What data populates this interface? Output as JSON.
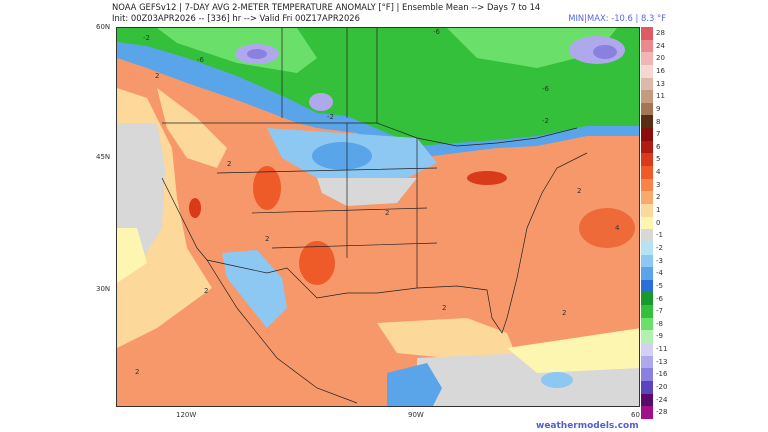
{
  "header": {
    "title": "NOAA GEFSv12 | 7-DAY AVG 2-METER TEMPERATURE ANOMALY [°F] | Ensemble Mean --> Days 7 to 14",
    "subtitle": "Init: 00Z03APR2026 -- [336] hr --> Valid Fri 00Z17APR2026",
    "minmax": "MIN|MAX: -10.6 | 8.3 °F"
  },
  "axes": {
    "lat_labels": [
      "60N",
      "45N",
      "30N"
    ],
    "lon_labels": [
      "120W",
      "90W",
      "60"
    ]
  },
  "contour_labels": [
    "-2",
    "-6",
    "-6",
    "-2",
    "-2",
    "-6",
    "2",
    "2",
    "2",
    "2",
    "2",
    "4",
    "2",
    "2",
    "2",
    "2"
  ],
  "colorbar": {
    "labels": [
      "28",
      "24",
      "20",
      "16",
      "13",
      "11",
      "9",
      "8",
      "7",
      "6",
      "5",
      "4",
      "3",
      "2",
      "1",
      "0",
      "-1",
      "-2",
      "-3",
      "-4",
      "-5",
      "-6",
      "-7",
      "-8",
      "-9",
      "-11",
      "-13",
      "-16",
      "-20",
      "-24",
      "-28"
    ],
    "colors": [
      "#e05a66",
      "#ea8a90",
      "#f2b5b5",
      "#f4d8d0",
      "#dcb9a8",
      "#c49a80",
      "#a57556",
      "#5a2e14",
      "#8a0c0c",
      "#b01a12",
      "#d83a1a",
      "#ee5a28",
      "#f6844a",
      "#f8aa6c",
      "#fcd89a",
      "#fdf6b0",
      "#d8d8d8",
      "#b4e4f4",
      "#8cc8f2",
      "#5aa4ea",
      "#2a70d8",
      "#1a9a2a",
      "#34c03a",
      "#6ae06a",
      "#b4f0b0",
      "#d4d0f4",
      "#b0a8ec",
      "#8a80e0",
      "#5a44c0",
      "#5a0a6a",
      "#a0108a"
    ]
  },
  "credit": "weathermodels.com"
}
